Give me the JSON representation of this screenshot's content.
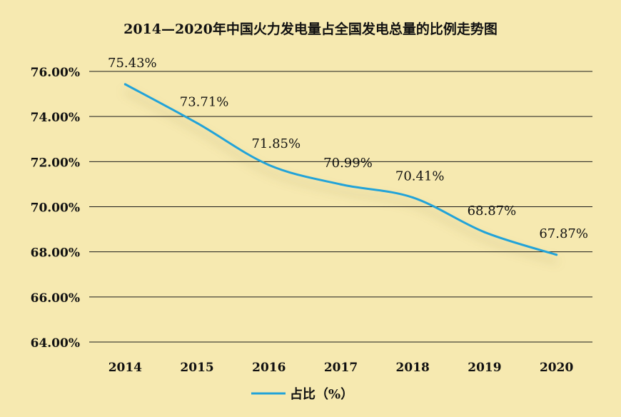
{
  "chart_data": {
    "type": "line",
    "title": "2014—2020年中国火力发电量占全国发电总量的比例走势图",
    "categories": [
      "2014",
      "2015",
      "2016",
      "2017",
      "2018",
      "2019",
      "2020"
    ],
    "series": [
      {
        "name": "占比（%）",
        "values": [
          75.43,
          73.71,
          71.85,
          70.99,
          70.41,
          68.87,
          67.87
        ],
        "labels": [
          "75.43%",
          "73.71%",
          "71.85%",
          "70.99%",
          "70.41%",
          "68.87%",
          "67.87%"
        ]
      }
    ],
    "yticks": [
      "64.00%",
      "66.00%",
      "68.00%",
      "70.00%",
      "72.00%",
      "74.00%",
      "76.00%"
    ],
    "ylim": [
      64,
      76
    ],
    "grid": true,
    "legend": "bottom",
    "colors": {
      "line": "#22a3d8",
      "background": "#f6e9b0",
      "grid": "#1a1a1a"
    }
  }
}
